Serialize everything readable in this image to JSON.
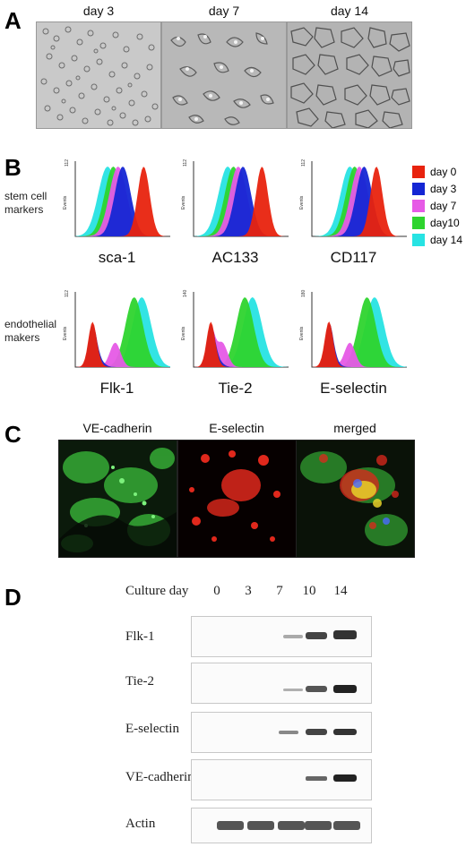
{
  "panelA": {
    "letter": "A",
    "days": [
      "day 3",
      "day 7",
      "day 14"
    ]
  },
  "panelB": {
    "letter": "B",
    "row1_label": [
      "stem cell",
      "markers"
    ],
    "row2_label": [
      "endothelial",
      "makers"
    ],
    "markers_row1": [
      "sca-1",
      "AC133",
      "CD117"
    ],
    "markers_row2": [
      "Flk-1",
      "Tie-2",
      "E-selectin"
    ],
    "y_axis_text": "Events",
    "legend": [
      {
        "label": "day 0",
        "color": "#e8230e"
      },
      {
        "label": "day 3",
        "color": "#1426d4"
      },
      {
        "label": "day 7",
        "color": "#e65ae6"
      },
      {
        "label": "day10",
        "color": "#2ed42e"
      },
      {
        "label": "day 14",
        "color": "#27e3e3"
      }
    ],
    "ymax_labels": [
      "112",
      "112",
      "112",
      "112",
      "140",
      "180"
    ]
  },
  "panelC": {
    "letter": "C",
    "titles": [
      "VE-cadherin",
      "E-selectin",
      "merged"
    ]
  },
  "panelD": {
    "letter": "D",
    "header": "Culture day",
    "days": [
      "0",
      "3",
      "7",
      "10",
      "14"
    ],
    "proteins": [
      "Flk-1",
      "Tie-2",
      "E-selectin",
      "VE-cadherin",
      "Actin"
    ]
  }
}
